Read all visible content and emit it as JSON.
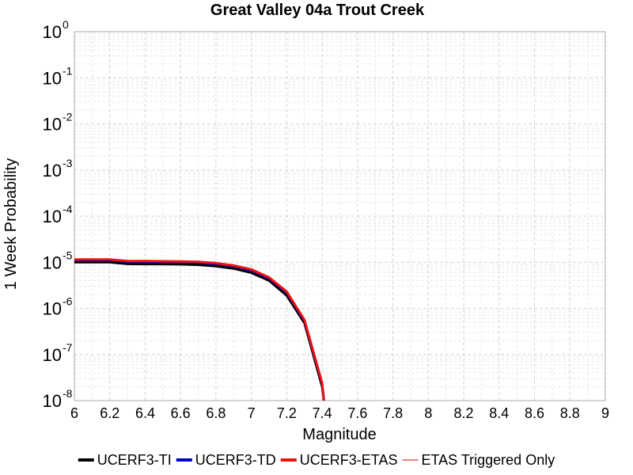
{
  "chart_data": {
    "type": "line",
    "title": "Great Valley 04a Trout Creek",
    "xlabel": "Magnitude",
    "ylabel": "1 Week Probability",
    "xlim": [
      6,
      9
    ],
    "ylim": [
      1e-08,
      1
    ],
    "yscale": "log",
    "grid": true,
    "legend_position": "bottom",
    "x_ticks": [
      "6",
      "6.2",
      "6.4",
      "6.6",
      "6.8",
      "7",
      "7.2",
      "7.4",
      "7.6",
      "7.8",
      "8",
      "8.2",
      "8.4",
      "8.6",
      "8.8",
      "9"
    ],
    "y_ticks": [
      {
        "base": "10",
        "exp": "0"
      },
      {
        "base": "10",
        "exp": "-1"
      },
      {
        "base": "10",
        "exp": "-2"
      },
      {
        "base": "10",
        "exp": "-3"
      },
      {
        "base": "10",
        "exp": "-4"
      },
      {
        "base": "10",
        "exp": "-5"
      },
      {
        "base": "10",
        "exp": "-6"
      },
      {
        "base": "10",
        "exp": "-7"
      },
      {
        "base": "10",
        "exp": "-8"
      }
    ],
    "series": [
      {
        "name": "UCERF3-TI",
        "color": "#000000",
        "x": [
          6.0,
          6.1,
          6.2,
          6.3,
          6.4,
          6.5,
          6.6,
          6.7,
          6.8,
          6.9,
          7.0,
          7.1,
          7.2,
          7.3,
          7.4,
          7.41
        ],
        "y": [
          1e-05,
          1e-05,
          1e-05,
          9.2e-06,
          9.1e-06,
          9.1e-06,
          9e-06,
          8.8e-06,
          8.2e-06,
          7.3e-06,
          5.9e-06,
          4e-06,
          1.9e-06,
          4.8e-07,
          2e-08,
          6e-09
        ]
      },
      {
        "name": "UCERF3-TD",
        "color": "#0000cc",
        "x": [
          6.0,
          6.1,
          6.2,
          6.3,
          6.4,
          6.5,
          6.6,
          6.7,
          6.8,
          6.9,
          7.0,
          7.1,
          7.2,
          7.3,
          7.4,
          7.41
        ],
        "y": [
          1.1e-05,
          1.1e-05,
          1.1e-05,
          1.03e-05,
          1.02e-05,
          1e-05,
          1e-05,
          9.8e-06,
          9.2e-06,
          8.2e-06,
          6.7e-06,
          4.5e-06,
          2.2e-06,
          5.4e-07,
          2.3e-08,
          7e-09
        ]
      },
      {
        "name": "UCERF3-ETAS",
        "color": "#ee1111",
        "x": [
          6.0,
          6.1,
          6.2,
          6.3,
          6.4,
          6.5,
          6.6,
          6.7,
          6.8,
          6.9,
          7.0,
          7.1,
          7.2,
          7.3,
          7.4,
          7.41
        ],
        "y": [
          1.15e-05,
          1.15e-05,
          1.15e-05,
          1.06e-05,
          1.06e-05,
          1.05e-05,
          1.04e-05,
          1.02e-05,
          9.6e-06,
          8.5e-06,
          7e-06,
          4.7e-06,
          2.3e-06,
          5.6e-07,
          2.4e-08,
          7e-09
        ]
      },
      {
        "name": "ETAS Triggered Only",
        "color": "#f08080",
        "x": [],
        "y": []
      }
    ]
  }
}
